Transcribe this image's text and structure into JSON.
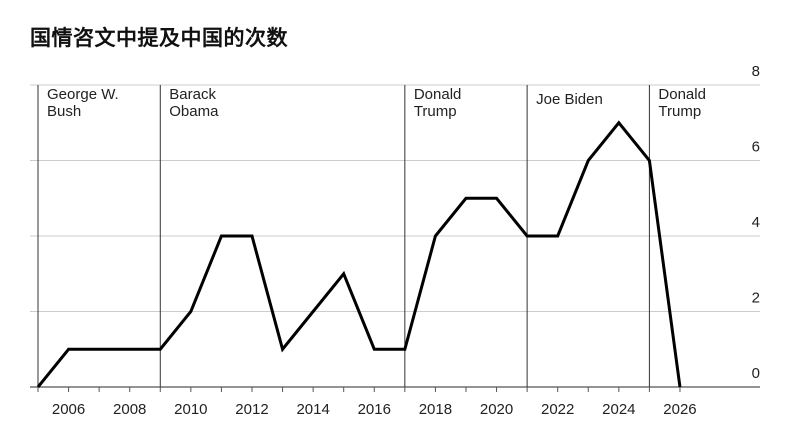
{
  "chart_data": {
    "type": "line",
    "title": "国情咨文中提及中国的次数",
    "xlabel": "",
    "ylabel": "",
    "x": [
      2005,
      2006,
      2007,
      2008,
      2009,
      2010,
      2011,
      2012,
      2013,
      2014,
      2015,
      2016,
      2017,
      2018,
      2019,
      2020,
      2021,
      2022,
      2023,
      2024,
      2025,
      2026
    ],
    "values": [
      0,
      1,
      1,
      1,
      1,
      2,
      4,
      4,
      1,
      2,
      3,
      1,
      1,
      4,
      5,
      5,
      4,
      4,
      6,
      7,
      6,
      0
    ],
    "xlim": [
      2005,
      2028.5
    ],
    "ylim": [
      0,
      8
    ],
    "x_ticks": [
      2006,
      2008,
      2010,
      2012,
      2014,
      2016,
      2018,
      2020,
      2022,
      2024,
      2026
    ],
    "y_ticks": [
      0,
      2,
      4,
      6,
      8
    ],
    "grid": "horizontal",
    "y_axis_side": "right",
    "line_color": "#000000",
    "grid_color": "#cccccc",
    "periods": [
      {
        "start": 2005,
        "label": [
          "George W.",
          "Bush"
        ]
      },
      {
        "start": 2009,
        "label": [
          "Barack",
          "Obama"
        ]
      },
      {
        "start": 2017,
        "label": [
          "Donald",
          "Trump"
        ]
      },
      {
        "start": 2021,
        "label": [
          "Joe Biden"
        ]
      },
      {
        "start": 2025,
        "label": [
          "Donald",
          "Trump"
        ]
      }
    ]
  }
}
